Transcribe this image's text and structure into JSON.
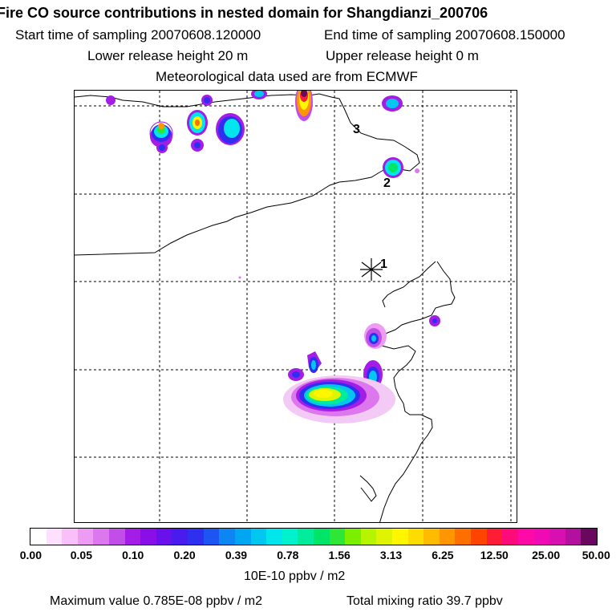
{
  "header": {
    "title": "Fire CO source contributions in nested domain for Shangdianzi_200706",
    "start_time": "Start time of sampling 20070608.120000",
    "end_time": "End time of sampling 20070608.150000",
    "lower_release": "Lower release height   20 m",
    "upper_release": "Upper release height    0 m",
    "met_data": "Meteorological data used are from ECMWF"
  },
  "map": {
    "receptor_marker": "receptor-star",
    "sites": [
      {
        "label": "1"
      },
      {
        "label": "2"
      },
      {
        "label": "3"
      }
    ]
  },
  "colorbar": {
    "colors": [
      "#ffffff",
      "#fde0fd",
      "#f9bff9",
      "#ee9cf3",
      "#dd77ee",
      "#c24ee8",
      "#a31de6",
      "#8a0ee8",
      "#6a10ea",
      "#4a1bee",
      "#2f2ff0",
      "#1d55f2",
      "#0d86f2",
      "#00a6f2",
      "#00c6f0",
      "#00e6ec",
      "#00f2cd",
      "#00ec9a",
      "#00e467",
      "#2de637",
      "#7af000",
      "#b6f400",
      "#dff400",
      "#fff600",
      "#ffdc00",
      "#ffbb00",
      "#ff9600",
      "#ff6f00",
      "#ff4400",
      "#ff1d35",
      "#ff0a7a",
      "#ff0aa6",
      "#f00ab4",
      "#d810b2",
      "#b410a0",
      "#6a0860"
    ],
    "ticks": [
      "0.00",
      "0.05",
      "0.10",
      "0.20",
      "0.39",
      "0.78",
      "1.56",
      "3.13",
      "6.25",
      "12.50",
      "25.00",
      "50.00"
    ],
    "units": "10E-10 ppbv / m2"
  },
  "footer": {
    "max_value": "Maximum value  0.785E-08 ppbv / m2",
    "total_mixing": "Total mixing ratio      39.7 ppbv"
  }
}
